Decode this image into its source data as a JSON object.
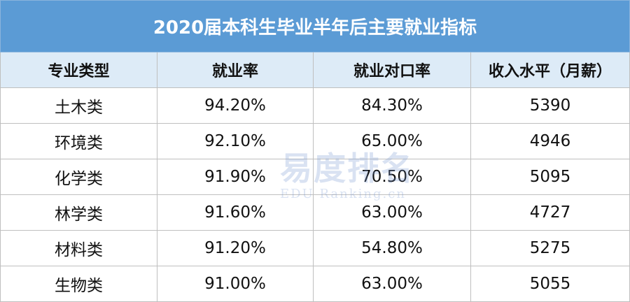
{
  "table": {
    "title": "2020届本科生毕业半年后主要就业指标",
    "header": [
      "专业类型",
      "就业率",
      "就业对口率",
      "收入水平（月薪）"
    ],
    "rows": [
      [
        "土木类",
        "94.20%",
        "84.30%",
        "5390"
      ],
      [
        "环境类",
        "92.10%",
        "65.00%",
        "4946"
      ],
      [
        "化学类",
        "91.90%",
        "70.50%",
        "5095"
      ],
      [
        "林学类",
        "91.60%",
        "63.00%",
        "4727"
      ],
      [
        "材料类",
        "91.20%",
        "54.80%",
        "5275"
      ],
      [
        "生物类",
        "91.00%",
        "63.00%",
        "5055"
      ]
    ]
  },
  "watermark": {
    "text": "易度排名",
    "subtext": "EDU Ranking.cn"
  }
}
